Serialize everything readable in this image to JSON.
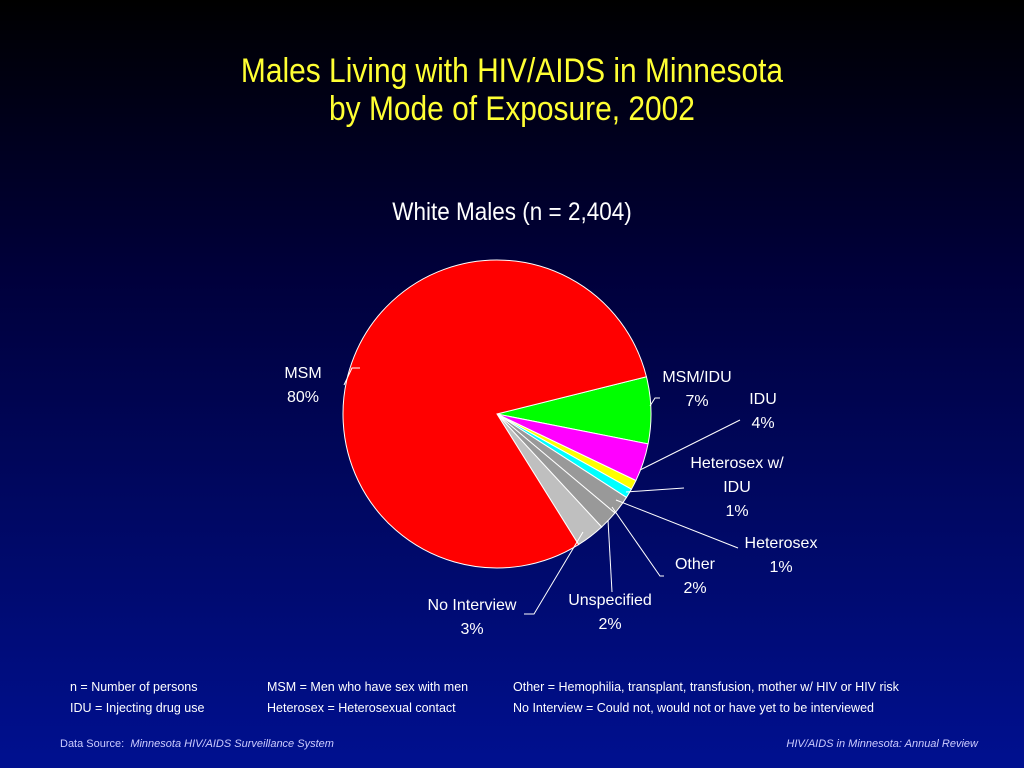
{
  "title_line1": "Males Living with HIV/AIDS in Minnesota",
  "title_line2": "by Mode of Exposure, 2002",
  "chart_data": {
    "type": "pie",
    "title": "White Males (n = 2,404)",
    "slices": [
      {
        "name": "MSM",
        "value": 80,
        "label": "80%",
        "color": "#ff0000"
      },
      {
        "name": "MSM/IDU",
        "value": 7,
        "label": "7%",
        "color": "#00ff00"
      },
      {
        "name": "IDU",
        "value": 4,
        "label": "4%",
        "color": "#ff00ff"
      },
      {
        "name": "Heterosex w/ IDU",
        "value": 1,
        "label": "1%",
        "color": "#ffff00"
      },
      {
        "name": "Heterosex",
        "value": 1,
        "label": "1%",
        "color": "#00ffff"
      },
      {
        "name": "Other",
        "value": 2,
        "label": "2%",
        "color": "#999999"
      },
      {
        "name": "Unspecified",
        "value": 2,
        "label": "2%",
        "color": "#999999"
      },
      {
        "name": "No Interview",
        "value": 3,
        "label": "3%",
        "color": "#bfbfbf"
      }
    ]
  },
  "labels": {
    "msm_name": "MSM",
    "msm_pct": "80%",
    "msmidu_name": "MSM/IDU",
    "msmidu_pct": "7%",
    "idu_name": "IDU",
    "idu_pct": "4%",
    "hetidu_line1": "Heterosex w/",
    "hetidu_line2": "IDU",
    "hetidu_pct": "1%",
    "het_name": "Heterosex",
    "het_pct": "1%",
    "other_name": "Other",
    "other_pct": "2%",
    "unspec_name": "Unspecified",
    "unspec_pct": "2%",
    "noint_name": "No Interview",
    "noint_pct": "3%"
  },
  "legend": {
    "col1": [
      "n = Number of persons",
      "IDU = Injecting drug use"
    ],
    "col2": [
      "MSM = Men who have sex with men",
      "Heterosex = Heterosexual contact"
    ],
    "col3": [
      "Other = Hemophilia, transplant, transfusion, mother w/ HIV or HIV risk",
      "No Interview = Could not, would not or have yet to be interviewed"
    ]
  },
  "footer": {
    "source_label": "Data Source:",
    "source_value": "Minnesota HIV/AIDS Surveillance System",
    "right": "HIV/AIDS in Minnesota: Annual Review"
  }
}
